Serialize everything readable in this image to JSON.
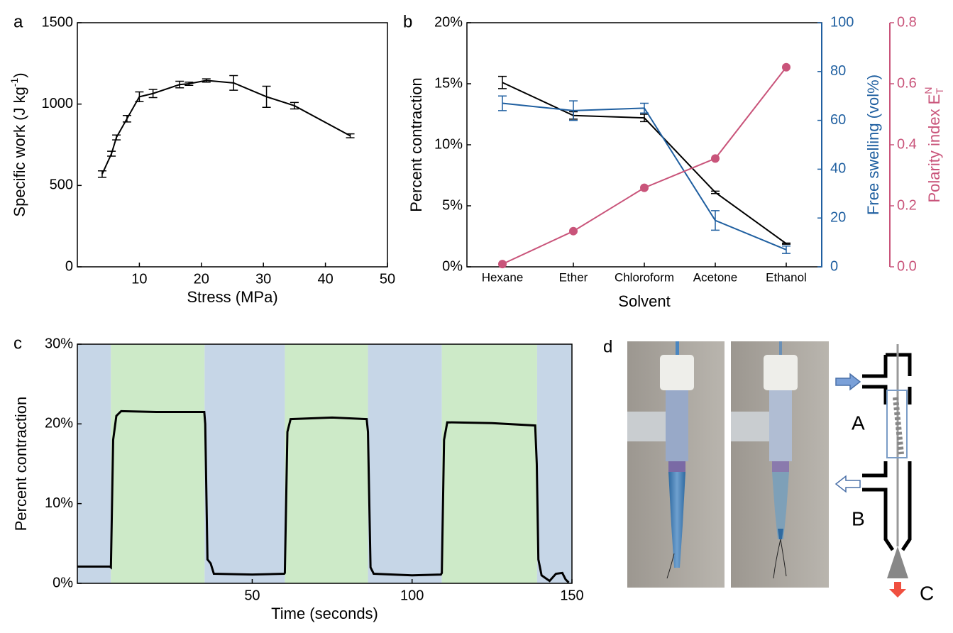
{
  "chart_data": [
    {
      "type": "line",
      "panel_label": "a",
      "x": [
        4,
        5.5,
        6.3,
        8,
        10,
        12.2,
        16.5,
        18,
        20.8,
        25.2,
        30.5,
        35,
        44
      ],
      "values": [
        570,
        695,
        795,
        910,
        1045,
        1065,
        1120,
        1125,
        1145,
        1130,
        1045,
        990,
        805
      ],
      "errors": [
        20,
        15,
        15,
        20,
        30,
        25,
        20,
        10,
        10,
        45,
        65,
        20,
        12
      ],
      "color": "#000000",
      "xlabel": "Stress (MPa)",
      "ylabel_parts": [
        "Specific work (J kg",
        "-1",
        ")"
      ],
      "xlim": [
        0,
        50
      ],
      "xticks": [
        10,
        20,
        30,
        40,
        50
      ],
      "ylim": [
        0,
        1500
      ],
      "yticks": [
        0,
        500,
        1000,
        1500
      ]
    },
    {
      "type": "line",
      "panel_label": "b",
      "categories": [
        "Hexane",
        "Ether",
        "Chloroform",
        "Acetone",
        "Ethanol"
      ],
      "xlabel": "Solvent",
      "ylabel": "Percent contraction",
      "y2label": "Free swelling (vol%)",
      "y3label_parts": [
        "Polarity index E",
        "N",
        "T"
      ],
      "ylim": [
        0,
        20
      ],
      "yticks": [
        {
          "value": 0,
          "label": "0%"
        },
        {
          "value": 5,
          "label": "5%"
        },
        {
          "value": 10,
          "label": "10%"
        },
        {
          "value": 15,
          "label": "15%"
        },
        {
          "value": 20,
          "label": "20%"
        }
      ],
      "y2lim": [
        0,
        100
      ],
      "y2ticks": [
        0,
        20,
        40,
        60,
        80,
        100
      ],
      "y2color": "#1f5fa0",
      "y3lim": [
        0,
        0.8
      ],
      "y3ticks": [
        {
          "value": 0,
          "label": "0.0"
        },
        {
          "value": 0.2,
          "label": "0.2"
        },
        {
          "value": 0.4,
          "label": "0.4"
        },
        {
          "value": 0.6,
          "label": "0.6"
        },
        {
          "value": 0.8,
          "label": "0.8"
        }
      ],
      "y3color": "#c9547a",
      "series": [
        {
          "color": "#000000",
          "values": [
            15.1,
            12.4,
            12.2,
            6.1,
            1.9
          ],
          "errors": [
            0.5,
            0.3,
            0.3,
            0.1,
            0.05
          ]
        },
        {
          "color": "#1f5fa0",
          "axis": "y2",
          "values": [
            67,
            64,
            65,
            19,
            7
          ],
          "errors": [
            3,
            4,
            2,
            4,
            1.5
          ]
        },
        {
          "color": "#c9547a",
          "axis": "y3",
          "values": [
            0.009,
            0.117,
            0.259,
            0.355,
            0.654
          ]
        }
      ]
    },
    {
      "type": "line",
      "panel_label": "c",
      "x": [
        -4.7,
        5.5,
        5.8,
        6.5,
        7.5,
        9,
        20,
        35,
        35.3,
        36,
        37,
        38,
        50,
        60,
        60.2,
        61,
        62,
        75,
        85.8,
        86.2,
        87,
        88,
        100,
        109,
        109.3,
        110,
        111,
        125,
        138.5,
        139,
        139.5,
        140.5,
        143,
        145,
        147,
        148,
        149
      ],
      "values": [
        2.1,
        2.1,
        2,
        18,
        21,
        21.6,
        21.5,
        21.5,
        20,
        3,
        2.5,
        1.2,
        1.1,
        1.2,
        1.3,
        19,
        20.6,
        20.8,
        20.6,
        19,
        2,
        1.2,
        1,
        1.1,
        1.3,
        18,
        20.2,
        20.1,
        19.8,
        15,
        3,
        1,
        0.3,
        1.2,
        1.3,
        0.5,
        0.1
      ],
      "color": "#000000",
      "regions": [
        {
          "start": -4.7,
          "end": 5.8,
          "color": "#c6d6e7"
        },
        {
          "start": 5.8,
          "end": 35.1,
          "color": "#cdeac8"
        },
        {
          "start": 35.1,
          "end": 60.2,
          "color": "#c6d6e7"
        },
        {
          "start": 60.2,
          "end": 86.2,
          "color": "#cdeac8"
        },
        {
          "start": 86.2,
          "end": 109.3,
          "color": "#c6d6e7"
        },
        {
          "start": 109.3,
          "end": 139.1,
          "color": "#cdeac8"
        },
        {
          "start": 139.1,
          "end": 150,
          "color": "#c6d6e7"
        }
      ],
      "xlabel": "Time (seconds)",
      "ylabel": "Percent contraction",
      "xlim": [
        -4.7,
        150
      ],
      "xticks": [
        50,
        100,
        150
      ],
      "ylim": [
        0,
        30
      ],
      "yticks": [
        {
          "value": 0,
          "label": "0%"
        },
        {
          "value": 10,
          "label": "10%"
        },
        {
          "value": 20,
          "label": "20%"
        },
        {
          "value": 30,
          "label": "30%"
        }
      ]
    }
  ],
  "panel_d": {
    "label": "d",
    "labels": [
      "A",
      "B",
      "C"
    ]
  }
}
